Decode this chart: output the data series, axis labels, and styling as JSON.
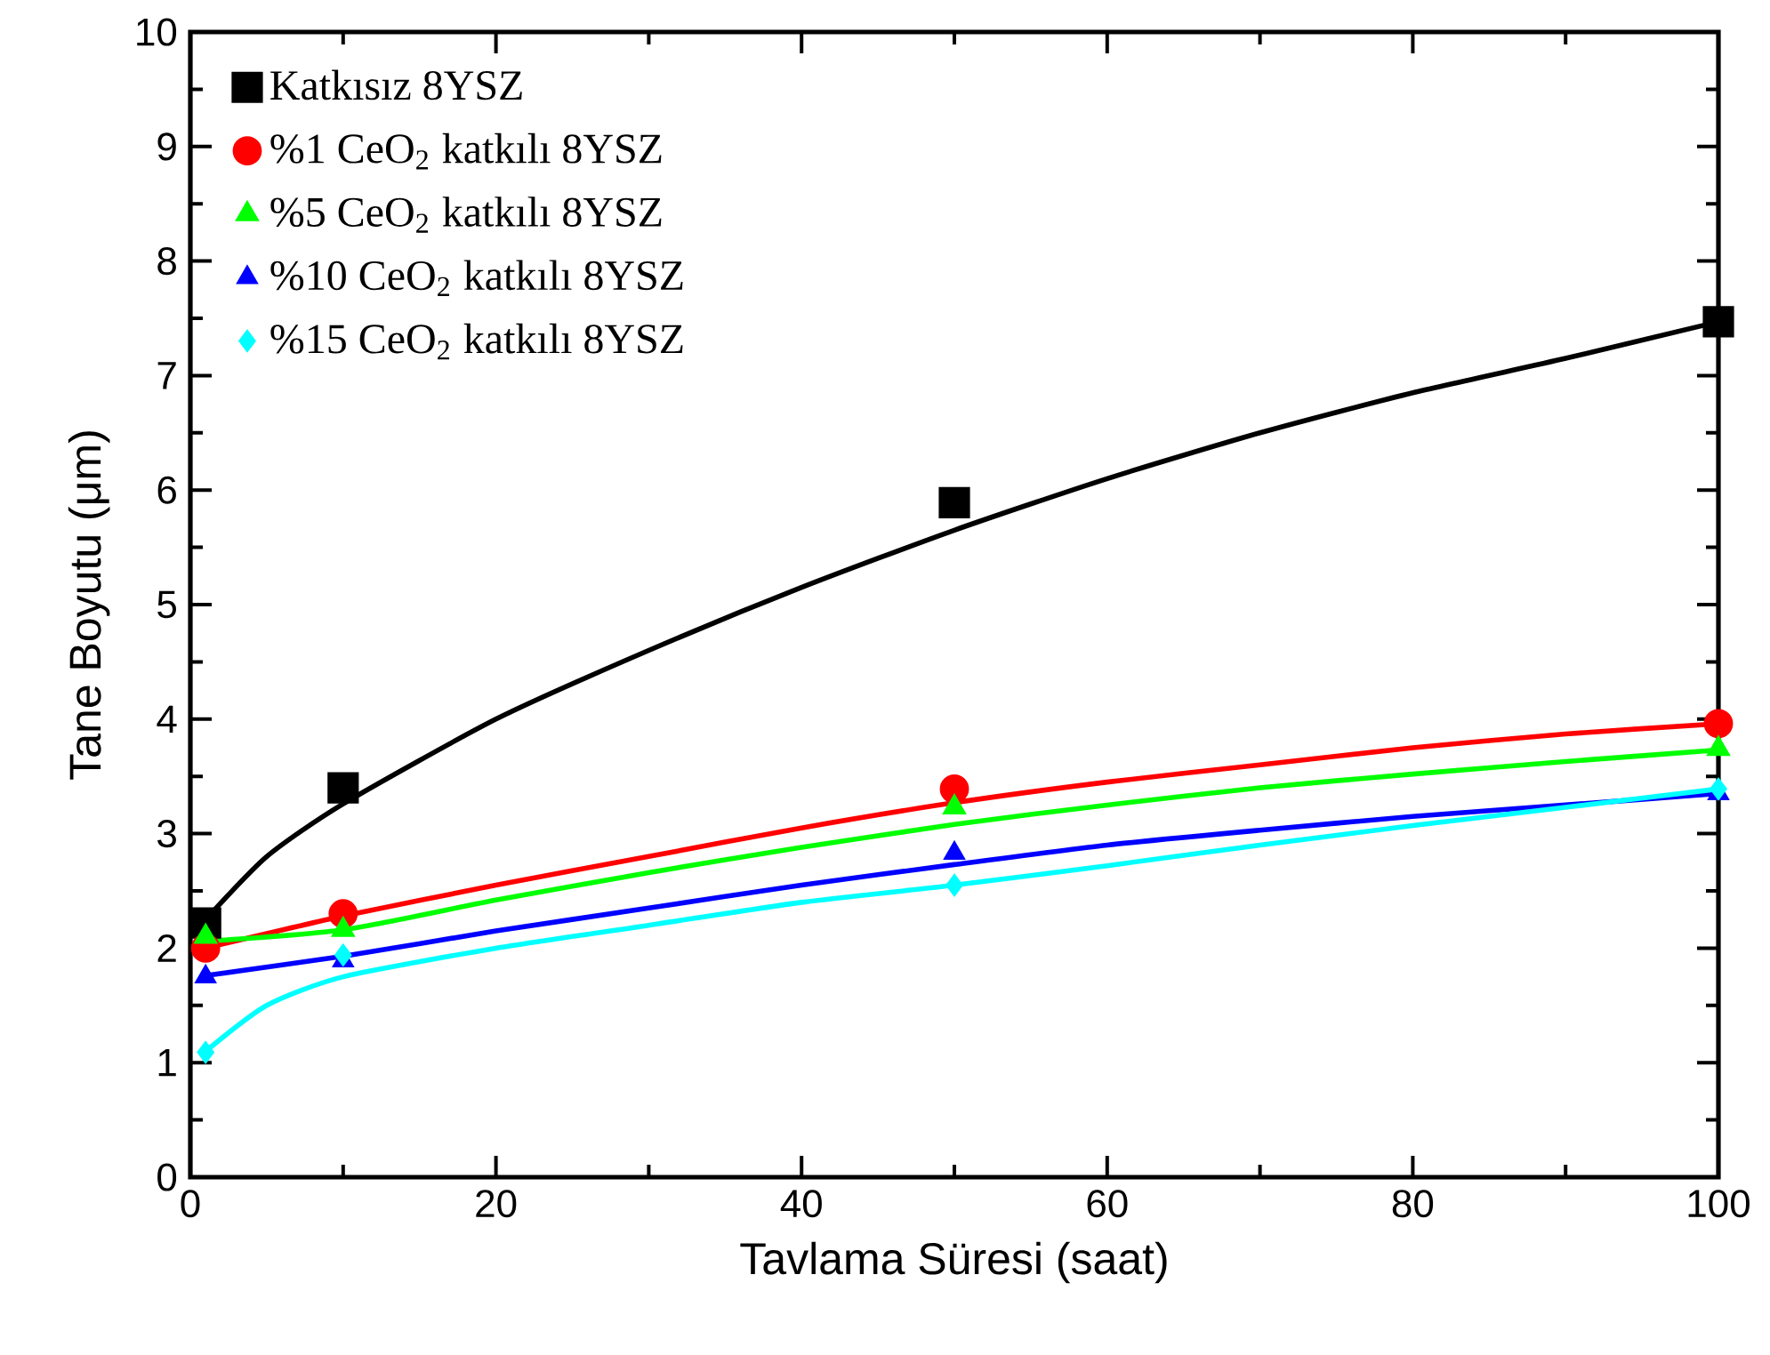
{
  "chart_data": {
    "type": "scatter",
    "xlabel": "Tavlama Süresi (saat)",
    "ylabel": "Tane Boyutu (μm)",
    "xlim": [
      0,
      100
    ],
    "ylim": [
      0,
      10
    ],
    "xticks": [
      0,
      20,
      40,
      60,
      80,
      100
    ],
    "yticks": [
      0,
      1,
      2,
      3,
      4,
      5,
      6,
      7,
      8,
      9,
      10
    ],
    "legend": "top left",
    "grid": false,
    "series": [
      {
        "name": "Katkısız 8YSZ",
        "color": "#000000",
        "marker": "square",
        "x": [
          1,
          10,
          50,
          100
        ],
        "values": [
          2.22,
          3.4,
          5.89,
          7.47
        ]
      },
      {
        "name": "%1 CeO$_{2}$ katkılı 8YSZ",
        "color": "#ff0000",
        "marker": "circle",
        "x": [
          1,
          10,
          50,
          100
        ],
        "values": [
          2.0,
          2.3,
          3.39,
          3.96
        ]
      },
      {
        "name": "%5 CeO$_{2}$ katkılı 8YSZ",
        "color": "#00ff00",
        "marker": "triangle",
        "x": [
          1,
          10,
          50,
          100
        ],
        "values": [
          2.1,
          2.16,
          3.23,
          3.74
        ]
      },
      {
        "name": "%10 CeO$_{2}$ katkılı 8YSZ",
        "color": "#0000ff",
        "marker": "triangle",
        "x": [
          1,
          10,
          50,
          100
        ],
        "values": [
          1.75,
          1.89,
          2.83,
          3.35
        ]
      },
      {
        "name": "%15 CeO$_{2}$ katkılı 8YSZ",
        "color": "#00ffff",
        "marker": "diamond",
        "x": [
          1,
          10,
          50,
          100
        ],
        "values": [
          1.09,
          1.94,
          2.55,
          3.39
        ]
      },
      {
        "type": "line",
        "color": "#000000",
        "line_style": "solid",
        "x": [
          1,
          5,
          10,
          20,
          30,
          40,
          50,
          60,
          70,
          80,
          90,
          100
        ],
        "values": [
          2.25,
          2.8,
          3.26,
          4.0,
          4.6,
          5.15,
          5.65,
          6.1,
          6.5,
          6.85,
          7.15,
          7.47
        ]
      },
      {
        "type": "line",
        "color": "#ff0000",
        "line_style": "solid",
        "x": [
          1,
          10,
          20,
          30,
          40,
          50,
          60,
          70,
          80,
          90,
          100
        ],
        "values": [
          2.0,
          2.28,
          2.55,
          2.8,
          3.05,
          3.27,
          3.45,
          3.6,
          3.75,
          3.87,
          3.96
        ]
      },
      {
        "type": "line",
        "color": "#00ff00",
        "line_style": "solid",
        "x": [
          1,
          10,
          20,
          30,
          40,
          50,
          60,
          70,
          80,
          90,
          100
        ],
        "values": [
          2.06,
          2.16,
          2.42,
          2.66,
          2.88,
          3.08,
          3.25,
          3.4,
          3.52,
          3.63,
          3.73
        ]
      },
      {
        "type": "line",
        "color": "#0000ff",
        "line_style": "solid",
        "x": [
          1,
          10,
          20,
          30,
          40,
          50,
          60,
          70,
          80,
          90,
          100
        ],
        "values": [
          1.76,
          1.93,
          2.15,
          2.35,
          2.55,
          2.73,
          2.9,
          3.03,
          3.15,
          3.25,
          3.35
        ]
      },
      {
        "type": "line",
        "color": "#00ffff",
        "line_style": "solid",
        "x": [
          1,
          5,
          10,
          20,
          30,
          40,
          50,
          60,
          70,
          80,
          90,
          100
        ],
        "values": [
          1.1,
          1.5,
          1.75,
          2.0,
          2.2,
          2.4,
          2.55,
          2.72,
          2.9,
          3.07,
          3.23,
          3.39
        ]
      }
    ]
  }
}
